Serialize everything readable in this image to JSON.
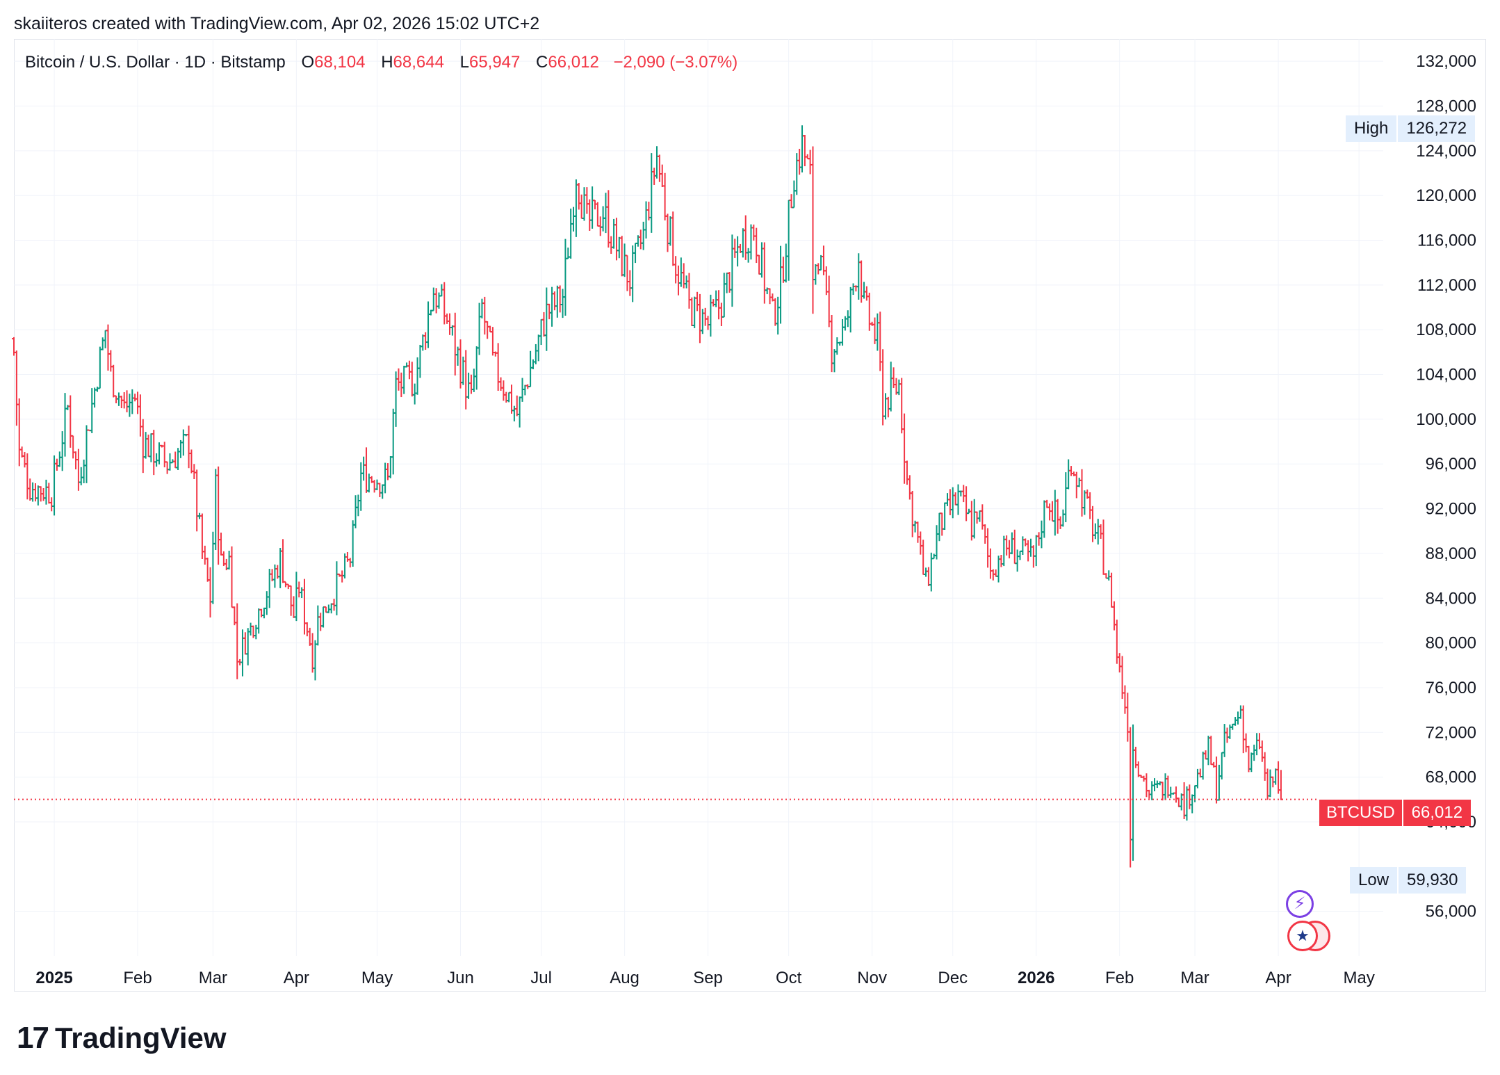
{
  "header": {
    "created_line": "skaiiteros created with TradingView.com, Apr 02, 2026 15:02 UTC+2"
  },
  "legend": {
    "symbol": "Bitcoin / U.S. Dollar · 1D · Bitstamp",
    "open_key": "O",
    "open": "68,104",
    "high_key": "H",
    "high": "68,644",
    "low_key": "L",
    "low": "65,947",
    "close_key": "C",
    "close": "66,012",
    "change": "−2,090 (−3.07%)"
  },
  "markers": {
    "high_label": "High",
    "high_value": "126,272",
    "low_label": "Low",
    "low_value": "59,930",
    "last_symbol": "BTCUSD",
    "last_value": "66,012"
  },
  "footer": {
    "brand": "TradingView"
  },
  "icons": [
    "lightning-badge-icon",
    "us-flag-icon"
  ],
  "colors": {
    "up": "#089981",
    "down": "#f23645",
    "grid": "#f0f3fa",
    "axis_text": "#131722",
    "last_price_line": "#f23645"
  },
  "chart_data": {
    "type": "ohlc",
    "title": "Bitcoin / U.S. Dollar · 1D · Bitstamp",
    "ylim": [
      52000,
      134000
    ],
    "y_ticks": [
      56000,
      64000,
      68000,
      72000,
      76000,
      80000,
      84000,
      88000,
      92000,
      96000,
      100000,
      104000,
      108000,
      112000,
      116000,
      120000,
      124000,
      128000,
      132000
    ],
    "y_tick_labels": [
      "56,000",
      "64,000",
      "68,000",
      "72,000",
      "76,000",
      "80,000",
      "84,000",
      "88,000",
      "92,000",
      "96,000",
      "100,000",
      "104,000",
      "108,000",
      "112,000",
      "116,000",
      "120,000",
      "124,000",
      "128,000",
      "132,000"
    ],
    "x_ticks": [
      {
        "label": "2025",
        "date": "2025-01-01",
        "bold": true
      },
      {
        "label": "Feb",
        "date": "2025-02-01"
      },
      {
        "label": "Mar",
        "date": "2025-03-01"
      },
      {
        "label": "Apr",
        "date": "2025-04-01"
      },
      {
        "label": "May",
        "date": "2025-05-01"
      },
      {
        "label": "Jun",
        "date": "2025-06-01"
      },
      {
        "label": "Jul",
        "date": "2025-07-01"
      },
      {
        "label": "Aug",
        "date": "2025-08-01"
      },
      {
        "label": "Sep",
        "date": "2025-09-01"
      },
      {
        "label": "Oct",
        "date": "2025-10-01"
      },
      {
        "label": "Nov",
        "date": "2025-11-01"
      },
      {
        "label": "Dec",
        "date": "2025-12-01"
      },
      {
        "label": "2026",
        "date": "2026-01-01",
        "bold": true
      },
      {
        "label": "Feb",
        "date": "2026-02-01"
      },
      {
        "label": "Mar",
        "date": "2026-03-01"
      },
      {
        "label": "Apr",
        "date": "2026-04-01"
      },
      {
        "label": "May",
        "date": "2026-05-01"
      }
    ],
    "xlim": [
      "2024-12-17",
      "2026-05-10"
    ],
    "period_high": 126272,
    "period_low": 59930,
    "last_close": 66012,
    "close_anchors": [
      [
        "2024-12-17",
        106000
      ],
      [
        "2024-12-19",
        97000
      ],
      [
        "2024-12-23",
        94000
      ],
      [
        "2024-12-31",
        93500
      ],
      [
        "2025-01-06",
        101000
      ],
      [
        "2025-01-10",
        94500
      ],
      [
        "2025-01-17",
        104000
      ],
      [
        "2025-01-20",
        108000
      ],
      [
        "2025-01-22",
        104000
      ],
      [
        "2025-01-27",
        101000
      ],
      [
        "2025-01-31",
        102000
      ],
      [
        "2025-02-03",
        98000
      ],
      [
        "2025-02-12",
        96000
      ],
      [
        "2025-02-20",
        98000
      ],
      [
        "2025-02-25",
        88000
      ],
      [
        "2025-02-28",
        84000
      ],
      [
        "2025-03-02",
        94000
      ],
      [
        "2025-03-04",
        87000
      ],
      [
        "2025-03-07",
        87500
      ],
      [
        "2025-03-10",
        78500
      ],
      [
        "2025-03-20",
        84000
      ],
      [
        "2025-03-26",
        87500
      ],
      [
        "2025-03-31",
        82500
      ],
      [
        "2025-04-02",
        85000
      ],
      [
        "2025-04-07",
        79000
      ],
      [
        "2025-04-09",
        82000
      ],
      [
        "2025-04-15",
        84500
      ],
      [
        "2025-04-21",
        87500
      ],
      [
        "2025-04-25",
        95000
      ],
      [
        "2025-05-05",
        94500
      ],
      [
        "2025-05-08",
        103000
      ],
      [
        "2025-05-15",
        103500
      ],
      [
        "2025-05-22",
        111500
      ],
      [
        "2025-05-27",
        109000
      ],
      [
        "2025-06-05",
        101500
      ],
      [
        "2025-06-09",
        110000
      ],
      [
        "2025-06-13",
        105000
      ],
      [
        "2025-06-22",
        100500
      ],
      [
        "2025-06-30",
        107000
      ],
      [
        "2025-07-03",
        109500
      ],
      [
        "2025-07-09",
        111000
      ],
      [
        "2025-07-14",
        122000
      ],
      [
        "2025-07-18",
        117500
      ],
      [
        "2025-07-24",
        118500
      ],
      [
        "2025-08-01",
        113500
      ],
      [
        "2025-08-03",
        112500
      ],
      [
        "2025-08-08",
        116500
      ],
      [
        "2025-08-13",
        123500
      ],
      [
        "2025-08-17",
        117500
      ],
      [
        "2025-08-20",
        114000
      ],
      [
        "2025-08-25",
        110000
      ],
      [
        "2025-09-01",
        108500
      ],
      [
        "2025-09-06",
        110500
      ],
      [
        "2025-09-13",
        116000
      ],
      [
        "2025-09-18",
        117000
      ],
      [
        "2025-09-25",
        109000
      ],
      [
        "2025-09-28",
        112000
      ],
      [
        "2025-10-03",
        122000
      ],
      [
        "2025-10-06",
        124500
      ],
      [
        "2025-10-09",
        121500
      ],
      [
        "2025-10-10",
        113000
      ],
      [
        "2025-10-12",
        115000
      ],
      [
        "2025-10-17",
        106500
      ],
      [
        "2025-10-22",
        108000
      ],
      [
        "2025-10-27",
        114500
      ],
      [
        "2025-10-29",
        110000
      ],
      [
        "2025-11-03",
        107000
      ],
      [
        "2025-11-05",
        101500
      ],
      [
        "2025-11-11",
        103000
      ],
      [
        "2025-11-14",
        94500
      ],
      [
        "2025-11-21",
        85000
      ],
      [
        "2025-11-26",
        90500
      ],
      [
        "2025-12-03",
        93000
      ],
      [
        "2025-12-08",
        90500
      ],
      [
        "2025-12-10",
        92000
      ],
      [
        "2025-12-15",
        86500
      ],
      [
        "2025-12-21",
        88500
      ],
      [
        "2025-12-31",
        87500
      ],
      [
        "2026-01-05",
        93000
      ],
      [
        "2026-01-10",
        90500
      ],
      [
        "2026-01-14",
        96500
      ],
      [
        "2026-01-19",
        92500
      ],
      [
        "2026-01-25",
        88500
      ],
      [
        "2026-01-29",
        84000
      ],
      [
        "2026-01-31",
        79000
      ],
      [
        "2026-02-04",
        73000
      ],
      [
        "2026-02-05",
        63000
      ],
      [
        "2026-02-06",
        70500
      ],
      [
        "2026-02-12",
        66500
      ],
      [
        "2026-02-20",
        67500
      ],
      [
        "2026-02-25",
        65500
      ],
      [
        "2026-03-03",
        68500
      ],
      [
        "2026-03-06",
        70500
      ],
      [
        "2026-03-09",
        67000
      ],
      [
        "2026-03-12",
        71000
      ],
      [
        "2026-03-16",
        73000
      ],
      [
        "2026-03-18",
        74000
      ],
      [
        "2026-03-21",
        69000
      ],
      [
        "2026-03-25",
        71000
      ],
      [
        "2026-03-28",
        66500
      ],
      [
        "2026-03-31",
        68300
      ],
      [
        "2026-04-02",
        66012
      ]
    ]
  }
}
